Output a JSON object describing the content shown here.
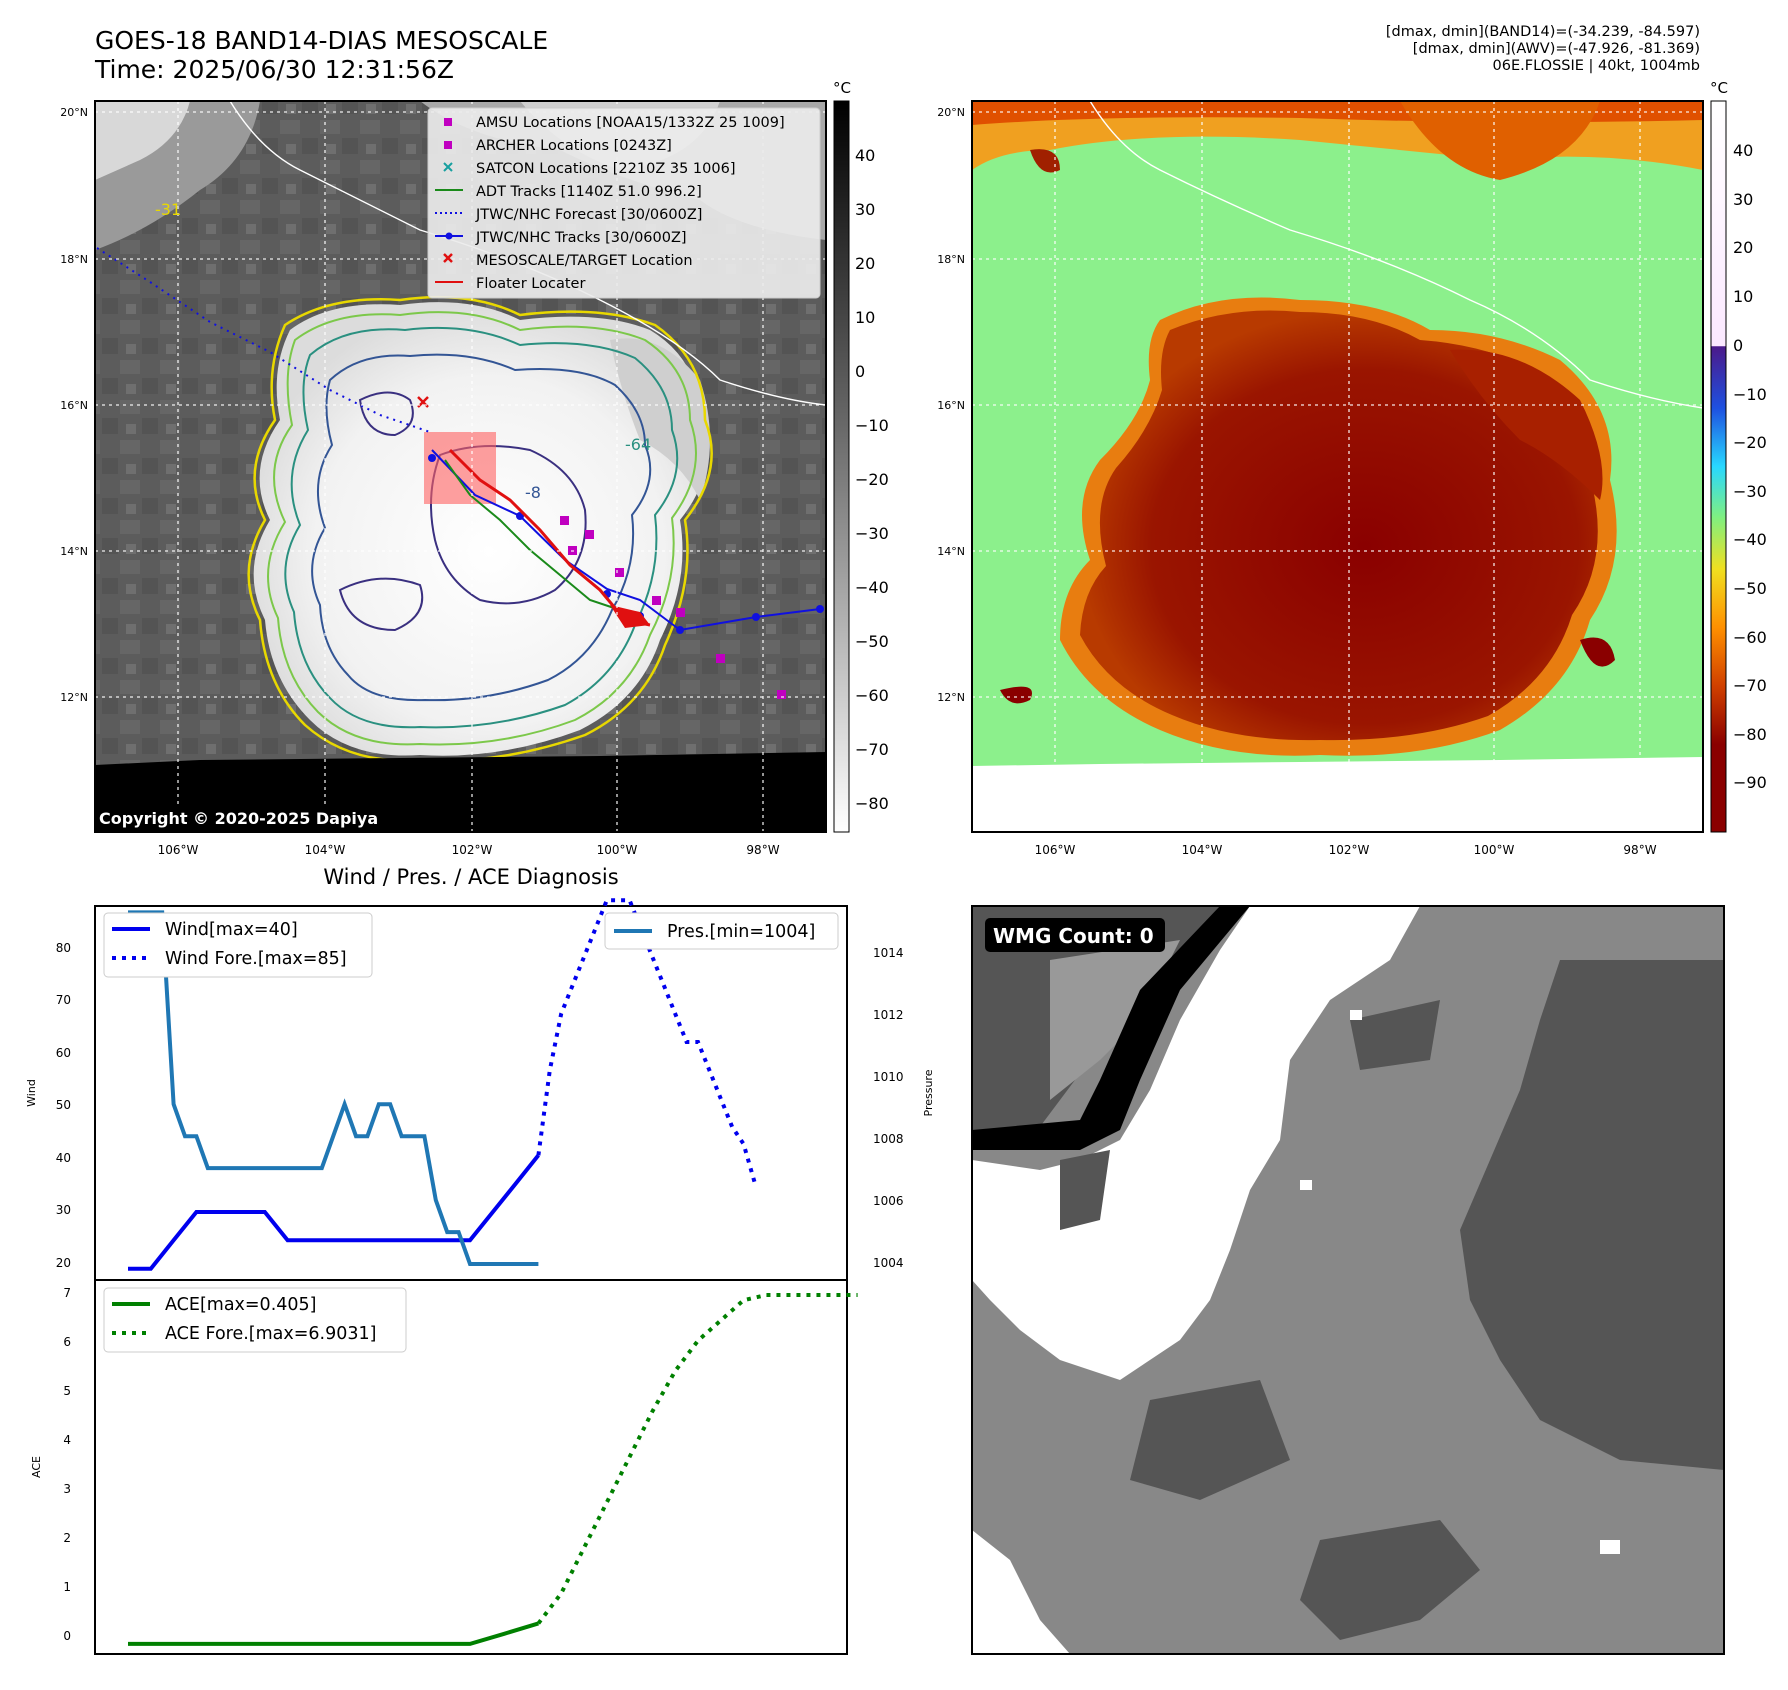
{
  "header": {
    "title_line1": "GOES-18 BAND14-DIAS MESOSCALE",
    "title_line2": "Time: 2025/06/30 12:31:56Z",
    "info_line1": "[dmax, dmin](BAND14)=(-34.239, -84.597)",
    "info_line2": "[dmax, dmin](AWV)=(-47.926, -81.369)",
    "info_line3": "06E.FLOSSIE | 40kt, 1004mb"
  },
  "maps": {
    "lat_labels": [
      "20°N",
      "18°N",
      "16°N",
      "14°N",
      "12°N"
    ],
    "lon_labels": [
      "106°W",
      "104°W",
      "102°W",
      "100°W",
      "98°W"
    ],
    "copyright": "Copyright © 2020-2025 Dapiya",
    "legend": [
      {
        "label": "AMSU Locations [NOAA15/1332Z 25 1009]",
        "marker": "square",
        "color": "#c000c0"
      },
      {
        "label": "ARCHER Locations [0243Z]",
        "marker": "square",
        "color": "#c000c0"
      },
      {
        "label": "SATCON Locations [2210Z 35 1006]",
        "marker": "x",
        "color": "#19a0a0"
      },
      {
        "label": "ADT Tracks [1140Z 51.0 996.2]",
        "marker": "line",
        "color": "#1a8a1a"
      },
      {
        "label": "JTWC/NHC Forecast [30/0600Z]",
        "marker": "dotted",
        "color": "#1010e0"
      },
      {
        "label": "JTWC/NHC Tracks [30/0600Z]",
        "marker": "line-dot",
        "color": "#1010e0"
      },
      {
        "label": "MESOSCALE/TARGET Location",
        "marker": "x",
        "color": "#e01010"
      },
      {
        "label": "Floater Locater",
        "marker": "line",
        "color": "#e01010"
      }
    ],
    "contour_labels": [
      "-31",
      "-64",
      "-8"
    ]
  },
  "colorbars": {
    "unit": "°C",
    "left_ticks": [
      "40",
      "30",
      "20",
      "10",
      "0",
      "−10",
      "−20",
      "−30",
      "−40",
      "−50",
      "−60",
      "−70",
      "−80"
    ],
    "right_ticks": [
      "40",
      "30",
      "20",
      "10",
      "0",
      "−10",
      "−20",
      "−30",
      "−40",
      "−50",
      "−60",
      "−70",
      "−80",
      "−90"
    ],
    "left_colors": [
      "#000000",
      "#ffffff"
    ],
    "right_colors": [
      "#ffffff",
      "#4b1a8a",
      "#1e50e0",
      "#28d8ff",
      "#80f080",
      "#f0e020",
      "#ff9000",
      "#d04000",
      "#8a0000"
    ]
  },
  "diag": {
    "title": "Wind / Pres. / ACE Diagnosis",
    "wind_ylabel": "Wind",
    "pres_ylabel": "Pressure",
    "ace_ylabel": "ACE",
    "wind_ticks": [
      "80",
      "70",
      "60",
      "50",
      "40",
      "30",
      "20"
    ],
    "pres_ticks": [
      "1014",
      "1012",
      "1010",
      "1008",
      "1006",
      "1004"
    ],
    "ace_ticks": [
      "7",
      "6",
      "5",
      "4",
      "3",
      "2",
      "1",
      "0"
    ],
    "legend_wind": "Wind[max=40]",
    "legend_wind_fore": "Wind Fore.[max=85]",
    "legend_pres": "Pres.[min=1004]",
    "legend_ace": "ACE[max=0.405]",
    "legend_ace_fore": "ACE Fore.[max=6.9031]"
  },
  "wmg": {
    "label": "WMG Count: 0",
    "colors": [
      "#000000",
      "#555555",
      "#888888",
      "#bbbbbb",
      "#ffffff"
    ]
  },
  "chart_data": [
    {
      "type": "line",
      "name": "wind",
      "x": [
        0,
        1,
        2,
        3,
        4,
        5,
        6,
        7,
        8,
        9,
        10,
        11,
        12,
        13,
        14,
        15,
        16,
        17,
        18,
        19,
        20,
        21,
        22,
        23,
        24,
        25,
        26,
        27,
        28,
        29,
        30,
        31,
        32,
        33,
        34,
        35,
        36,
        37,
        38,
        39,
        40,
        41,
        42,
        43,
        44,
        45,
        46,
        47,
        48,
        49,
        50,
        51
      ],
      "ylim": [
        18,
        84
      ],
      "series": [
        {
          "name": "Wind[max=40]",
          "color": "#0000ee",
          "style": "solid",
          "x": [
            0,
            2,
            4,
            6,
            8,
            10,
            12,
            14,
            16,
            18,
            20,
            22,
            24,
            26,
            28,
            30,
            32,
            34,
            36
          ],
          "values": [
            20,
            20,
            25,
            30,
            30,
            30,
            30,
            25,
            25,
            25,
            25,
            25,
            25,
            25,
            25,
            25,
            30,
            35,
            40
          ]
        },
        {
          "name": "Wind Fore.[max=85]",
          "color": "#0000ee",
          "style": "dotted",
          "x": [
            36,
            37,
            38,
            39,
            40,
            41,
            42,
            43,
            44,
            45,
            46,
            47,
            48,
            49,
            50,
            51,
            52,
            53,
            54,
            55
          ],
          "values": [
            40,
            55,
            65,
            70,
            75,
            80,
            85,
            85,
            85,
            80,
            75,
            70,
            65,
            60,
            60,
            55,
            50,
            45,
            42,
            35
          ]
        }
      ]
    },
    {
      "type": "line",
      "name": "pressure",
      "ylim": [
        1003.5,
        1015.2
      ],
      "series": [
        {
          "name": "Pres.[min=1004]",
          "color": "#1f77b4",
          "style": "solid",
          "x": [
            0,
            1,
            2,
            3,
            4,
            5,
            6,
            7,
            8,
            9,
            10,
            11,
            12,
            13,
            14,
            15,
            16,
            17,
            18,
            19,
            20,
            21,
            22,
            23,
            24,
            25,
            26,
            27,
            28,
            29,
            30,
            31,
            32,
            33,
            34,
            35,
            36
          ],
          "values": [
            1015,
            1015,
            1015,
            1015,
            1009,
            1008,
            1008,
            1007,
            1007,
            1007,
            1007,
            1007,
            1007,
            1007,
            1007,
            1007,
            1007,
            1007,
            1008,
            1009,
            1008,
            1008,
            1009,
            1009,
            1008,
            1008,
            1008,
            1006,
            1005,
            1005,
            1004,
            1004,
            1004,
            1004,
            1004,
            1004,
            1004
          ]
        }
      ]
    },
    {
      "type": "line",
      "name": "ace",
      "ylim": [
        -0.2,
        7.2
      ],
      "series": [
        {
          "name": "ACE[max=0.405]",
          "color": "#008000",
          "style": "solid",
          "x": [
            0,
            10,
            20,
            30,
            33,
            36
          ],
          "values": [
            0,
            0,
            0,
            0,
            0.2,
            0.405
          ]
        },
        {
          "name": "ACE Fore.[max=6.9031]",
          "color": "#008000",
          "style": "dotted",
          "x": [
            36,
            38,
            40,
            42,
            44,
            46,
            48,
            50,
            52,
            54,
            56,
            58,
            60,
            62,
            64
          ],
          "values": [
            0.405,
            1.0,
            1.9,
            2.8,
            3.7,
            4.6,
            5.4,
            6.0,
            6.4,
            6.8,
            6.9031,
            6.9031,
            6.9031,
            6.9031,
            6.9031
          ]
        }
      ]
    }
  ]
}
